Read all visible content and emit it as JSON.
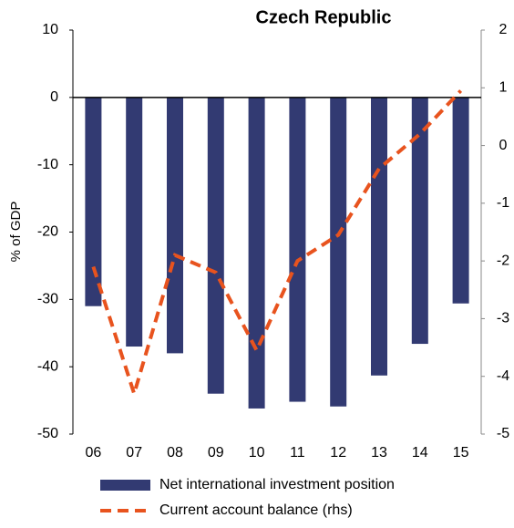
{
  "chart_data": {
    "type": "bar",
    "title": "Czech Republic",
    "y_label": "% of GDP",
    "categories": [
      "06",
      "07",
      "08",
      "09",
      "10",
      "11",
      "12",
      "13",
      "14",
      "15"
    ],
    "series": [
      {
        "name": "Net international investment position",
        "type": "bar",
        "color": "#323a72",
        "values": [
          -31,
          -37,
          -38,
          -44,
          -46.2,
          -45.2,
          -45.9,
          -41.3,
          -36.6,
          -30.6
        ]
      },
      {
        "name": "Current account balance (rhs)",
        "type": "line",
        "axis": "y2",
        "color": "#e8531e",
        "values": [
          -2.1,
          -4.3,
          -1.9,
          -2.2,
          -3.55,
          -2.0,
          -1.55,
          -0.4,
          0.2,
          0.95
        ]
      }
    ],
    "ylim": [
      -50,
      10
    ],
    "yticks": [
      10,
      0,
      -10,
      -20,
      -30,
      -40,
      -50
    ],
    "y2lim": [
      -5,
      2
    ],
    "y2ticks": [
      2,
      1,
      0,
      -1,
      -2,
      -3,
      -4,
      -5
    ]
  }
}
